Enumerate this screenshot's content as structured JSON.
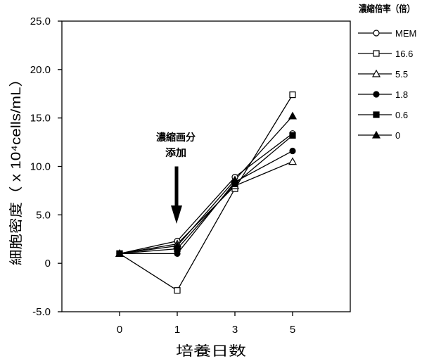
{
  "chart_data": {
    "type": "line",
    "categories": [
      "0",
      "1",
      "3",
      "5"
    ],
    "xlabel": "培養日数",
    "ylabel": "細胞密度（ x 10⁴cells/mL）",
    "ylim": [
      -5,
      25
    ],
    "yticks": [
      25,
      20,
      15,
      10,
      5,
      0,
      -5
    ],
    "yticklabels": [
      "25.0",
      "20.0",
      "15.0",
      "10.0",
      "5.0",
      "0",
      "-5.0"
    ],
    "grid": false,
    "legend_title": "濃縮倍率（倍）",
    "legend_position": "right",
    "line_color": "#000000",
    "annotation": [
      "濃縮画分",
      "添加"
    ],
    "series": [
      {
        "name": "MEM",
        "marker": "open-circle",
        "values": [
          1.0,
          2.3,
          8.9,
          13.4
        ]
      },
      {
        "name": "16.6",
        "marker": "open-square",
        "values": [
          1.0,
          -2.8,
          7.7,
          17.4
        ]
      },
      {
        "name": "5.5",
        "marker": "open-triangle",
        "values": [
          1.0,
          2.0,
          8.0,
          10.5
        ]
      },
      {
        "name": "1.8",
        "marker": "filled-circle",
        "values": [
          1.0,
          1.0,
          8.4,
          11.6
        ]
      },
      {
        "name": "0.6",
        "marker": "filled-square",
        "values": [
          1.0,
          1.5,
          8.2,
          13.2
        ]
      },
      {
        "name": "0",
        "marker": "filled-triangle",
        "values": [
          1.0,
          1.8,
          8.6,
          15.2
        ]
      }
    ]
  }
}
